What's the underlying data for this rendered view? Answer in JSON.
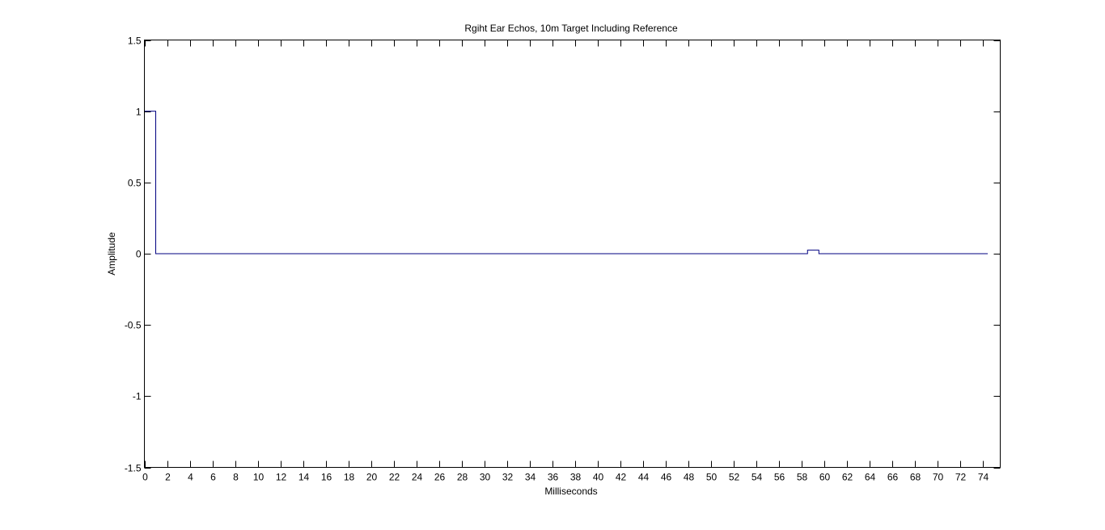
{
  "chart_data": {
    "type": "line",
    "title": "Rgiht Ear Echos, 10m Target Including Reference",
    "xlabel": "Milliseconds",
    "ylabel": "Amplitude",
    "xlim": [
      0,
      75.5
    ],
    "ylim": [
      -1.5,
      1.5
    ],
    "xticks": [
      0,
      2,
      4,
      6,
      8,
      10,
      12,
      14,
      16,
      18,
      20,
      22,
      24,
      26,
      28,
      30,
      32,
      34,
      36,
      38,
      40,
      42,
      44,
      46,
      48,
      50,
      52,
      54,
      56,
      58,
      60,
      62,
      64,
      66,
      68,
      70,
      72,
      74
    ],
    "yticks": [
      1.5,
      1,
      0.5,
      0,
      -0.5,
      -1,
      -1.5
    ],
    "ytick_labels": [
      "1.5",
      "1",
      "0.5",
      "0",
      "-0.5",
      "-1",
      "-1.5"
    ],
    "grid": false,
    "series": [
      {
        "color": "#000080",
        "x": [
          0,
          1,
          1,
          58.5,
          58.5,
          59.5,
          59.5,
          74.4
        ],
        "y": [
          1,
          1,
          0,
          0,
          0.025,
          0.025,
          0,
          0
        ]
      }
    ]
  }
}
